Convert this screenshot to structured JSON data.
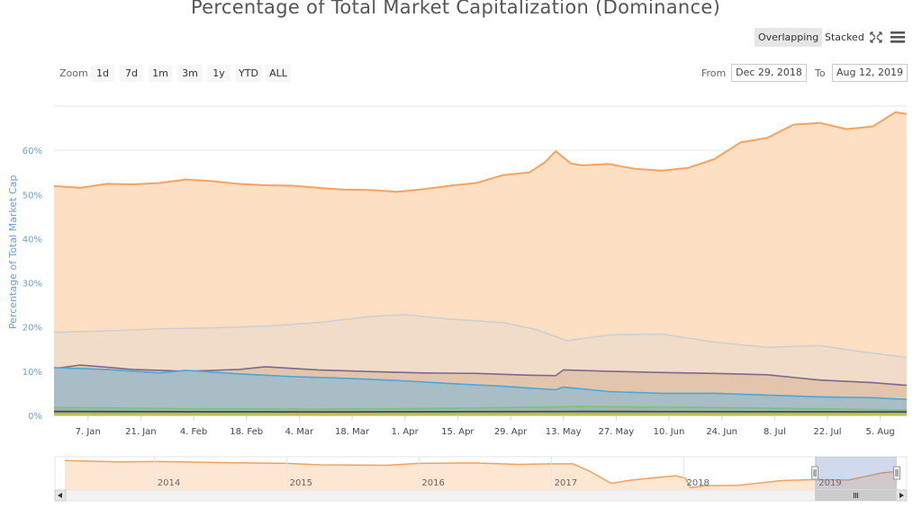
{
  "title": "Percentage of Total Market Capitalization (Dominance)",
  "modes": {
    "overlapping": "Overlapping",
    "stacked": "Stacked",
    "active": "overlapping"
  },
  "icons": [
    "fullscreen-icon",
    "menu-icon"
  ],
  "zoom": {
    "label": "Zoom",
    "buttons": [
      "1d",
      "7d",
      "1m",
      "3m",
      "1y",
      "YTD",
      "ALL"
    ]
  },
  "range": {
    "from_label": "From",
    "from_value": "Dec 29, 2018",
    "to_label": "To",
    "to_value": "Aug 12, 2019"
  },
  "colors": {
    "orange": "#f7a35c",
    "silver": "#d9d9d9",
    "purple": "#7b6a8a",
    "blue": "#4aa8d8",
    "green": "#7fbf7f",
    "dark": "#444444",
    "yellow": "#c8c840",
    "accent_label": "#6a9fd8"
  },
  "chart_data": {
    "type": "area",
    "title": "Percentage of Total Market Capitalization (Dominance)",
    "ylabel": "Percentage of Total Market Cap",
    "ylim": [
      0,
      70
    ],
    "x_range": [
      "2018-12-29",
      "2019-08-12"
    ],
    "y_ticks": [
      {
        "v": 0,
        "label": "0%"
      },
      {
        "v": 10,
        "label": "10%"
      },
      {
        "v": 20,
        "label": "20%"
      },
      {
        "v": 30,
        "label": "30%"
      },
      {
        "v": 40,
        "label": "40%"
      },
      {
        "v": 50,
        "label": "50%"
      },
      {
        "v": 60,
        "label": "60%"
      }
    ],
    "x_ticks": [
      {
        "d": "2019-01-07",
        "label": "7. Jan"
      },
      {
        "d": "2019-01-21",
        "label": "21. Jan"
      },
      {
        "d": "2019-02-04",
        "label": "4. Feb"
      },
      {
        "d": "2019-02-18",
        "label": "18. Feb"
      },
      {
        "d": "2019-03-04",
        "label": "4. Mar"
      },
      {
        "d": "2019-03-18",
        "label": "18. Mar"
      },
      {
        "d": "2019-04-01",
        "label": "1. Apr"
      },
      {
        "d": "2019-04-15",
        "label": "15. Apr"
      },
      {
        "d": "2019-04-29",
        "label": "29. Apr"
      },
      {
        "d": "2019-05-13",
        "label": "13. May"
      },
      {
        "d": "2019-05-27",
        "label": "27. May"
      },
      {
        "d": "2019-06-10",
        "label": "10. Jun"
      },
      {
        "d": "2019-06-24",
        "label": "24. Jun"
      },
      {
        "d": "2019-07-08",
        "label": "8. Jul"
      },
      {
        "d": "2019-07-22",
        "label": "22. Jul"
      },
      {
        "d": "2019-08-05",
        "label": "5. Aug"
      }
    ],
    "series": [
      {
        "color": "#f7a35c",
        "fill": "#fddfc4",
        "x": [
          "2018-12-29",
          "2019-01-05",
          "2019-01-12",
          "2019-01-19",
          "2019-01-26",
          "2019-02-02",
          "2019-02-09",
          "2019-02-16",
          "2019-02-23",
          "2019-03-02",
          "2019-03-09",
          "2019-03-16",
          "2019-03-23",
          "2019-03-30",
          "2019-04-06",
          "2019-04-13",
          "2019-04-20",
          "2019-04-27",
          "2019-05-04",
          "2019-05-08",
          "2019-05-11",
          "2019-05-15",
          "2019-05-18",
          "2019-05-25",
          "2019-06-01",
          "2019-06-08",
          "2019-06-15",
          "2019-06-22",
          "2019-06-29",
          "2019-07-02",
          "2019-07-06",
          "2019-07-13",
          "2019-07-20",
          "2019-07-27",
          "2019-08-03",
          "2019-08-09",
          "2019-08-12"
        ],
        "values": [
          51.9,
          51.5,
          52.4,
          52.3,
          52.6,
          53.4,
          53.0,
          52.4,
          52.1,
          52.0,
          51.5,
          51.1,
          51.0,
          50.6,
          51.2,
          52.0,
          52.6,
          54.4,
          55.0,
          57.2,
          59.8,
          57.0,
          56.6,
          56.9,
          55.8,
          55.4,
          56.0,
          58.0,
          61.8,
          62.2,
          62.8,
          65.8,
          66.2,
          64.8,
          65.4,
          68.6,
          68.2
        ]
      },
      {
        "color": "#cfcfcf",
        "fill": "#f0dcc9",
        "x": [
          "2018-12-29",
          "2019-01-12",
          "2019-01-26",
          "2019-02-09",
          "2019-02-23",
          "2019-03-09",
          "2019-03-23",
          "2019-04-01",
          "2019-04-13",
          "2019-04-27",
          "2019-05-06",
          "2019-05-14",
          "2019-05-25",
          "2019-06-08",
          "2019-06-22",
          "2019-07-06",
          "2019-07-20",
          "2019-07-31",
          "2019-08-12"
        ],
        "values": [
          18.8,
          19.1,
          19.6,
          19.8,
          20.2,
          21.0,
          22.4,
          22.8,
          21.8,
          21.0,
          19.4,
          16.9,
          18.2,
          18.4,
          16.6,
          15.4,
          15.8,
          14.4,
          13.1
        ]
      },
      {
        "color": "#7b6a8a",
        "fill": "#e3c4ad",
        "x": [
          "2018-12-29",
          "2019-01-05",
          "2019-01-19",
          "2019-02-02",
          "2019-02-16",
          "2019-02-23",
          "2019-03-09",
          "2019-03-23",
          "2019-04-06",
          "2019-04-20",
          "2019-05-04",
          "2019-05-11",
          "2019-05-13",
          "2019-05-25",
          "2019-06-08",
          "2019-06-22",
          "2019-07-06",
          "2019-07-20",
          "2019-08-03",
          "2019-08-12"
        ],
        "values": [
          10.6,
          11.4,
          10.4,
          10.0,
          10.4,
          11.0,
          10.3,
          9.9,
          9.6,
          9.5,
          9.1,
          9.0,
          10.3,
          10.0,
          9.7,
          9.5,
          9.2,
          8.0,
          7.4,
          6.8
        ]
      },
      {
        "color": "#4aa8d8",
        "fill": "#a8bdc6",
        "x": [
          "2018-12-29",
          "2019-01-12",
          "2019-01-26",
          "2019-02-02",
          "2019-02-16",
          "2019-03-02",
          "2019-03-16",
          "2019-03-30",
          "2019-04-13",
          "2019-04-27",
          "2019-05-11",
          "2019-05-13",
          "2019-05-25",
          "2019-06-08",
          "2019-06-22",
          "2019-07-06",
          "2019-07-20",
          "2019-08-03",
          "2019-08-12"
        ],
        "values": [
          10.8,
          10.4,
          9.6,
          10.2,
          9.4,
          8.8,
          8.4,
          7.9,
          7.2,
          6.6,
          5.8,
          6.4,
          5.4,
          5.0,
          5.0,
          4.6,
          4.2,
          4.0,
          3.6
        ]
      },
      {
        "color": "#7fbf7f",
        "fill": "#9fbaa6",
        "x": [
          "2018-12-29",
          "2019-02-02",
          "2019-03-09",
          "2019-04-13",
          "2019-05-18",
          "2019-06-22",
          "2019-07-27",
          "2019-08-12"
        ],
        "values": [
          1.8,
          1.5,
          1.4,
          1.6,
          2.0,
          1.8,
          1.4,
          1.2
        ]
      },
      {
        "color": "#444444",
        "fill": "#8aa893",
        "x": [
          "2018-12-29",
          "2019-03-09",
          "2019-05-18",
          "2019-08-12"
        ],
        "values": [
          0.9,
          0.8,
          0.9,
          0.8
        ]
      },
      {
        "color": "#c8c840",
        "fill": "#b9b56a",
        "x": [
          "2018-12-29",
          "2019-04-13",
          "2019-08-12"
        ],
        "values": [
          0.3,
          0.3,
          0.3
        ]
      }
    ],
    "navigator": {
      "x_range": [
        "2013-04-28",
        "2019-08-12"
      ],
      "ylim": [
        30,
        100
      ],
      "labels": [
        {
          "d": "2014-01-01",
          "label": "2014"
        },
        {
          "d": "2015-01-01",
          "label": "2015"
        },
        {
          "d": "2016-01-01",
          "label": "2016"
        },
        {
          "d": "2017-01-01",
          "label": "2017"
        },
        {
          "d": "2018-01-01",
          "label": "2018"
        },
        {
          "d": "2019-01-01",
          "label": "2019"
        }
      ],
      "selection": [
        "2018-12-29",
        "2019-08-12"
      ],
      "x": [
        "2013-04-28",
        "2013-10-01",
        "2014-01-01",
        "2014-06-01",
        "2015-01-01",
        "2015-04-01",
        "2015-10-01",
        "2016-01-01",
        "2016-06-01",
        "2016-10-01",
        "2017-01-01",
        "2017-03-01",
        "2017-04-15",
        "2017-06-15",
        "2017-08-01",
        "2017-10-01",
        "2017-12-10",
        "2018-01-05",
        "2018-01-20",
        "2018-03-01",
        "2018-06-01",
        "2018-10-01",
        "2018-12-29",
        "2019-04-01",
        "2019-05-15",
        "2019-07-01",
        "2019-08-12"
      ],
      "values": [
        92,
        89,
        90,
        88,
        86,
        83,
        82,
        86,
        87,
        84,
        85,
        85,
        70,
        44,
        50,
        55,
        60,
        55,
        35,
        39,
        40,
        50,
        52,
        51,
        58,
        66,
        69
      ]
    }
  }
}
